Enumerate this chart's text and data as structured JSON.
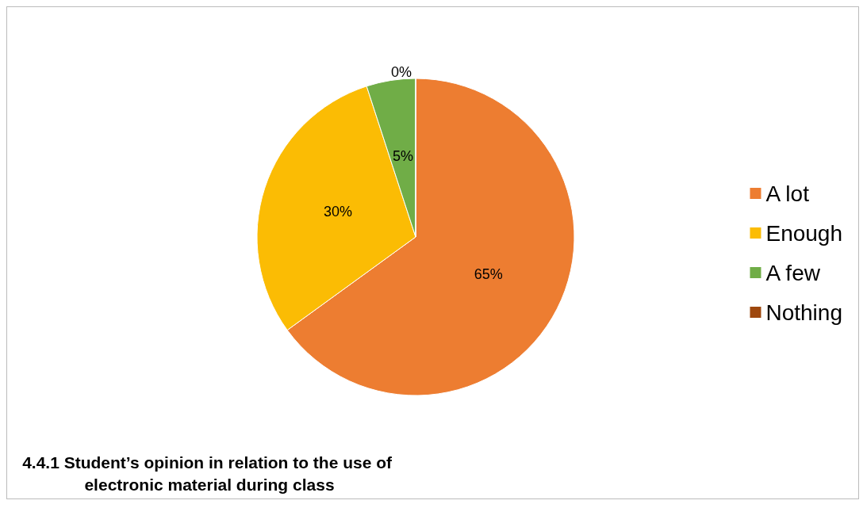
{
  "chart_data": {
    "type": "pie",
    "title": "4.4.1 Student’s opinion in relation to the use of electronic material during class",
    "categories": [
      "A lot",
      "Enough",
      "A few",
      "Nothing"
    ],
    "values": [
      65,
      30,
      5,
      0
    ],
    "colors": [
      "#ed7d31",
      "#fbbc04",
      "#70ad47",
      "#9e480e"
    ],
    "value_labels": [
      "65%",
      "30%",
      "5%",
      "0%"
    ],
    "legend": "right"
  }
}
